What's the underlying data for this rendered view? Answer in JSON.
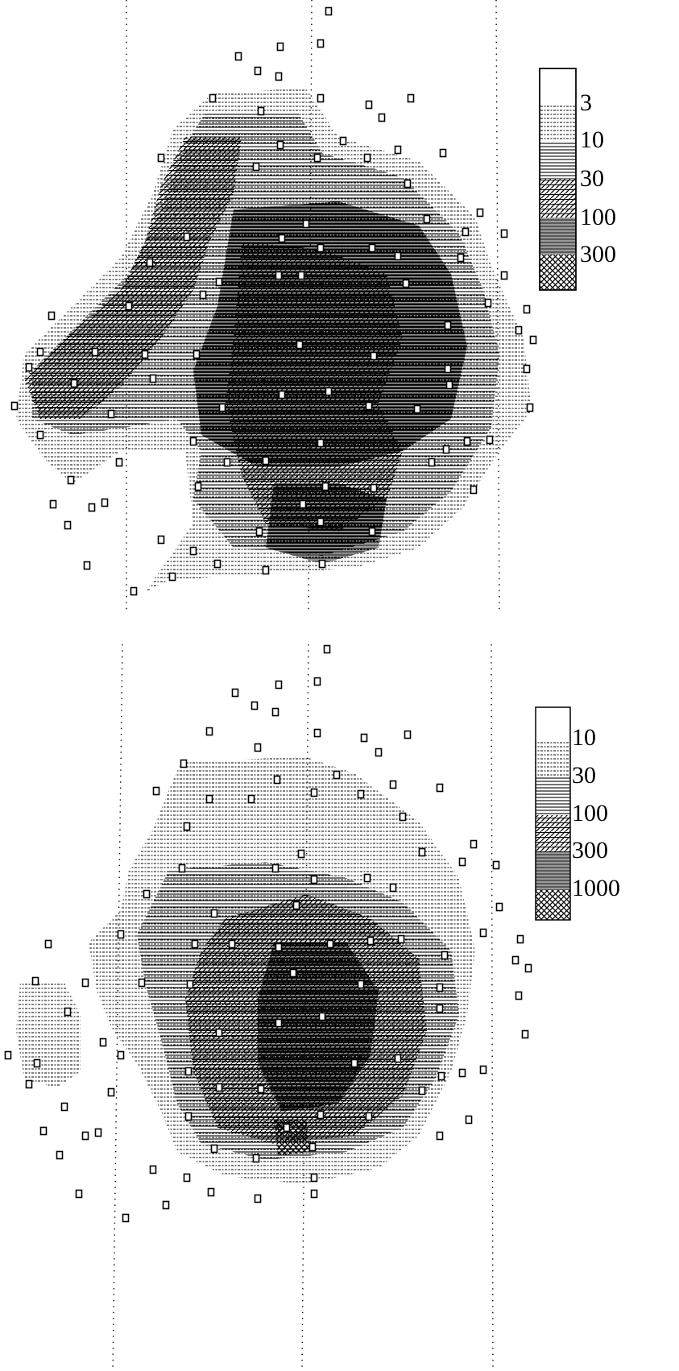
{
  "maps": [
    {
      "legend_labels": [
        3,
        10,
        30,
        100,
        300
      ]
    },
    {
      "legend_labels": [
        10,
        30,
        100,
        300,
        1000
      ]
    }
  ]
}
